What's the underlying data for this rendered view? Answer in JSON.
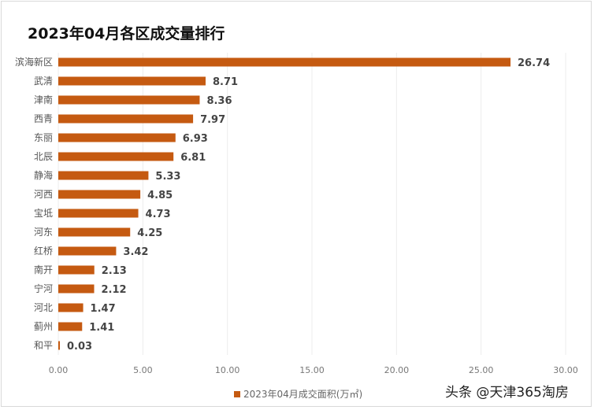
{
  "chart_data": {
    "type": "bar",
    "orientation": "horizontal",
    "title": "2023年04月各区成交量排行",
    "categories": [
      "滨海新区",
      "武清",
      "津南",
      "西青",
      "东丽",
      "北辰",
      "静海",
      "河西",
      "宝坻",
      "河东",
      "红桥",
      "南开",
      "宁河",
      "河北",
      "蓟州",
      "和平"
    ],
    "series": [
      {
        "name": "2023年04月成交面积(万㎡)",
        "values": [
          26.74,
          8.71,
          8.36,
          7.97,
          6.93,
          6.81,
          5.33,
          4.85,
          4.73,
          4.25,
          3.42,
          2.13,
          2.12,
          1.47,
          1.41,
          0.03
        ]
      }
    ],
    "xlim": [
      0,
      30
    ],
    "xticks": [
      "0.00",
      "5.00",
      "10.00",
      "15.00",
      "20.00",
      "25.00",
      "30.00"
    ],
    "grid": true,
    "legend": "bottom",
    "colors": {
      "bar": "#c55a11"
    }
  },
  "watermark": "头条 @天津365淘房"
}
